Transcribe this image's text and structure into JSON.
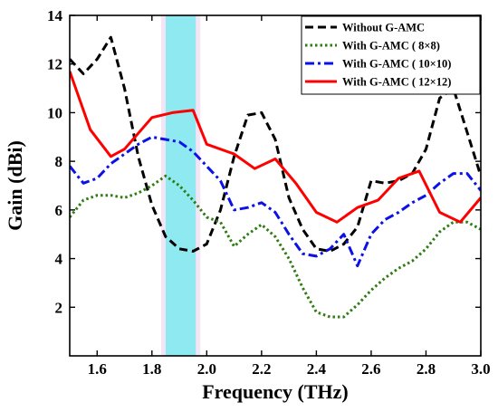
{
  "chart_data": {
    "type": "line",
    "xlabel": "Frequency (THz)",
    "ylabel": "Gain (dBi)",
    "xlim": [
      1.5,
      3.0
    ],
    "ylim": [
      0,
      14
    ],
    "xticks": [
      "1.6",
      "1.8",
      "2.0",
      "2.2",
      "2.4",
      "2.6",
      "2.8",
      "3.0"
    ],
    "xtick_values": [
      1.6,
      1.8,
      2.0,
      2.2,
      2.4,
      2.6,
      2.8,
      3.0
    ],
    "yticks": [
      "2",
      "4",
      "6",
      "8",
      "10",
      "12",
      "14"
    ],
    "ytick_values": [
      2,
      4,
      6,
      8,
      10,
      12,
      14
    ],
    "grid": false,
    "legend_position": "top-right",
    "highlight_band": {
      "x_start": 1.85,
      "x_end": 1.96,
      "color": "#8ee9f0"
    },
    "series": [
      {
        "name": "Without G-AMC",
        "color": "#000000",
        "dash": "dash",
        "x": [
          1.5,
          1.55,
          1.6,
          1.65,
          1.7,
          1.75,
          1.8,
          1.85,
          1.9,
          1.95,
          2.0,
          2.05,
          2.1,
          2.15,
          2.2,
          2.25,
          2.3,
          2.35,
          2.4,
          2.45,
          2.5,
          2.55,
          2.6,
          2.65,
          2.7,
          2.75,
          2.8,
          2.85,
          2.9,
          2.95,
          3.0
        ],
        "values": [
          12.2,
          11.6,
          12.2,
          13.1,
          11.0,
          8.2,
          6.2,
          4.9,
          4.4,
          4.3,
          4.6,
          6.0,
          8.2,
          9.9,
          10.0,
          8.9,
          6.5,
          5.2,
          4.4,
          4.3,
          4.6,
          5.3,
          7.2,
          7.1,
          7.2,
          7.5,
          8.5,
          10.6,
          11.0,
          9.2,
          7.4
        ]
      },
      {
        "name": "With G-AMC ( 8×8)",
        "color": "#2e7d12",
        "dash": "dot",
        "x": [
          1.5,
          1.55,
          1.6,
          1.65,
          1.7,
          1.75,
          1.8,
          1.85,
          1.9,
          1.95,
          2.0,
          2.05,
          2.1,
          2.15,
          2.2,
          2.25,
          2.3,
          2.35,
          2.4,
          2.45,
          2.5,
          2.55,
          2.6,
          2.65,
          2.7,
          2.75,
          2.8,
          2.85,
          2.9,
          2.95,
          3.0
        ],
        "values": [
          5.7,
          6.4,
          6.6,
          6.6,
          6.5,
          6.7,
          7.0,
          7.4,
          7.0,
          6.4,
          5.7,
          5.5,
          4.5,
          5.0,
          5.4,
          4.9,
          4.0,
          2.8,
          1.8,
          1.6,
          1.6,
          2.1,
          2.7,
          3.2,
          3.6,
          3.9,
          4.4,
          5.1,
          5.5,
          5.5,
          5.2
        ]
      },
      {
        "name": "With G-AMC ( 10×10)",
        "color": "#0a12e6",
        "dash": "dashdot",
        "x": [
          1.5,
          1.55,
          1.6,
          1.65,
          1.7,
          1.75,
          1.8,
          1.85,
          1.9,
          1.95,
          2.0,
          2.05,
          2.1,
          2.15,
          2.2,
          2.25,
          2.3,
          2.35,
          2.4,
          2.45,
          2.5,
          2.55,
          2.6,
          2.65,
          2.7,
          2.75,
          2.8,
          2.85,
          2.9,
          2.95,
          3.0
        ],
        "values": [
          7.8,
          7.1,
          7.3,
          7.9,
          8.3,
          8.7,
          9.0,
          8.9,
          8.8,
          8.4,
          7.8,
          7.2,
          6.0,
          6.1,
          6.3,
          5.9,
          5.0,
          4.2,
          4.1,
          4.4,
          5.0,
          3.7,
          5.0,
          5.6,
          5.9,
          6.3,
          6.6,
          7.1,
          7.5,
          7.5,
          6.8
        ]
      },
      {
        "name": "With G-AMC ( 12×12)",
        "color": "#ff0000",
        "dash": "solid",
        "x": [
          1.5,
          1.575,
          1.65,
          1.7,
          1.8,
          1.875,
          1.95,
          2.0,
          2.1,
          2.175,
          2.25,
          2.325,
          2.4,
          2.475,
          2.55,
          2.625,
          2.7,
          2.775,
          2.85,
          2.925,
          3.0
        ],
        "values": [
          11.7,
          9.3,
          8.2,
          8.5,
          9.8,
          10.0,
          10.1,
          8.7,
          8.3,
          7.7,
          8.1,
          7.1,
          5.9,
          5.5,
          6.1,
          6.4,
          7.3,
          7.6,
          5.9,
          5.5,
          6.5
        ]
      }
    ]
  }
}
